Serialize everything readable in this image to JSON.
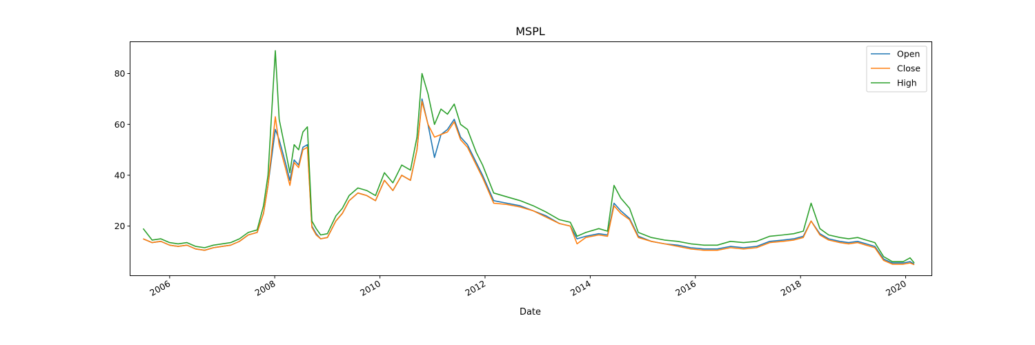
{
  "chart_data": {
    "type": "line",
    "title": "MSPL",
    "xlabel": "Date",
    "ylabel": "",
    "xlim": [
      "2005-04-01",
      "2020-07-01"
    ],
    "ylim": [
      0.5,
      92.5
    ],
    "x_ticks": [
      "2006",
      "2008",
      "2010",
      "2012",
      "2014",
      "2016",
      "2018",
      "2020"
    ],
    "y_ticks": [
      20,
      40,
      60,
      80
    ],
    "legend": {
      "position": "top-right"
    },
    "grid": false,
    "x": [
      "2005-07-01",
      "2005-09-01",
      "2005-11-01",
      "2006-01-01",
      "2006-03-01",
      "2006-05-01",
      "2006-07-01",
      "2006-09-01",
      "2006-11-01",
      "2007-01-01",
      "2007-03-01",
      "2007-05-01",
      "2007-07-01",
      "2007-09-01",
      "2007-10-15",
      "2007-11-15",
      "2008-01-05",
      "2008-02-01",
      "2008-03-15",
      "2008-04-15",
      "2008-05-15",
      "2008-06-15",
      "2008-07-15",
      "2008-08-15",
      "2008-09-15",
      "2008-10-15",
      "2008-11-15",
      "2009-01-01",
      "2009-03-01",
      "2009-04-15",
      "2009-06-01",
      "2009-08-01",
      "2009-10-01",
      "2009-12-01",
      "2010-02-01",
      "2010-04-01",
      "2010-06-01",
      "2010-08-01",
      "2010-09-15",
      "2010-10-20",
      "2010-12-01",
      "2011-01-15",
      "2011-03-01",
      "2011-04-15",
      "2011-06-01",
      "2011-07-15",
      "2011-09-01",
      "2011-11-01",
      "2011-12-15",
      "2012-03-01",
      "2012-06-01",
      "2012-09-01",
      "2012-12-01",
      "2013-03-01",
      "2013-06-01",
      "2013-08-15",
      "2013-10-01",
      "2013-12-01",
      "2014-03-01",
      "2014-05-01",
      "2014-06-15",
      "2014-08-01",
      "2014-10-01",
      "2014-12-01",
      "2015-03-01",
      "2015-06-01",
      "2015-09-01",
      "2015-12-01",
      "2016-03-01",
      "2016-06-01",
      "2016-09-01",
      "2016-12-01",
      "2017-03-01",
      "2017-06-01",
      "2017-09-01",
      "2017-11-15",
      "2018-01-20",
      "2018-03-15",
      "2018-05-15",
      "2018-07-15",
      "2018-10-01",
      "2018-12-01",
      "2019-02-01",
      "2019-04-01",
      "2019-06-01",
      "2019-08-01",
      "2019-10-01",
      "2019-12-15",
      "2020-02-01",
      "2020-03-01"
    ],
    "series": [
      {
        "name": "Open",
        "color": "#1f77b4",
        "values": [
          15,
          13.5,
          14,
          12.5,
          12,
          12.5,
          11,
          10.5,
          11.5,
          12,
          12.5,
          14,
          16.5,
          17.5,
          25,
          36,
          58,
          54,
          45,
          38,
          46,
          44,
          51,
          52,
          20,
          17,
          15,
          15.5,
          22,
          25,
          30,
          33,
          32,
          30,
          38,
          34,
          40,
          38,
          50,
          70,
          60,
          47,
          56,
          58,
          62,
          55,
          52,
          45,
          40,
          30,
          29,
          28,
          26,
          24,
          21,
          20,
          15,
          16,
          17,
          16.5,
          29,
          26,
          23,
          16,
          14,
          13,
          12.5,
          11.5,
          11,
          11,
          12,
          11.5,
          12,
          14,
          14.5,
          15,
          16,
          22,
          17,
          15,
          14,
          13.5,
          14,
          13,
          12,
          7,
          5.5,
          5.5,
          6,
          5
        ]
      },
      {
        "name": "Close",
        "color": "#ff7f0e",
        "values": [
          15,
          13.5,
          14,
          12.5,
          12,
          12.5,
          11,
          10.5,
          11.5,
          12,
          12.5,
          14,
          16.5,
          17.5,
          25,
          36,
          63,
          52,
          43,
          36,
          45,
          43,
          50,
          51,
          19.5,
          16.5,
          15,
          15.5,
          22,
          25,
          30,
          33,
          32,
          30,
          38,
          34,
          40,
          38,
          50,
          69,
          60,
          55,
          56,
          57,
          61,
          54,
          51,
          44,
          39,
          29,
          28.5,
          27.5,
          26,
          23.5,
          21,
          20,
          13,
          15.5,
          16.5,
          16,
          28,
          25,
          22.5,
          15.5,
          14,
          13,
          12,
          11,
          10.5,
          10.5,
          11.5,
          11,
          11.5,
          13.5,
          14,
          14.5,
          15.5,
          22,
          16.5,
          14.5,
          13.5,
          13,
          13.5,
          12.5,
          11.5,
          6.5,
          5,
          5,
          5.5,
          4.8
        ]
      },
      {
        "name": "High",
        "color": "#2ca02c",
        "values": [
          19,
          14.5,
          15,
          13.5,
          13,
          13.5,
          12,
          11.5,
          12.5,
          13,
          13.5,
          15,
          17.5,
          18.5,
          28,
          40,
          89,
          62,
          50,
          41,
          52,
          50,
          57,
          59,
          22,
          19,
          16.5,
          17,
          24,
          27,
          32,
          35,
          34,
          32,
          41,
          37,
          44,
          42,
          55,
          80,
          72,
          60,
          66,
          64,
          68,
          60,
          58,
          49,
          44,
          33,
          31.5,
          30,
          28,
          25.5,
          22.5,
          21.5,
          16,
          17.5,
          19,
          18,
          36,
          31,
          27,
          17.5,
          15.5,
          14.5,
          14,
          13,
          12.5,
          12.5,
          14,
          13.5,
          14,
          16,
          16.5,
          17,
          18,
          29,
          19,
          16.5,
          15.5,
          15,
          15.5,
          14.5,
          13.5,
          8,
          6,
          6,
          7.5,
          5.5
        ]
      }
    ]
  }
}
